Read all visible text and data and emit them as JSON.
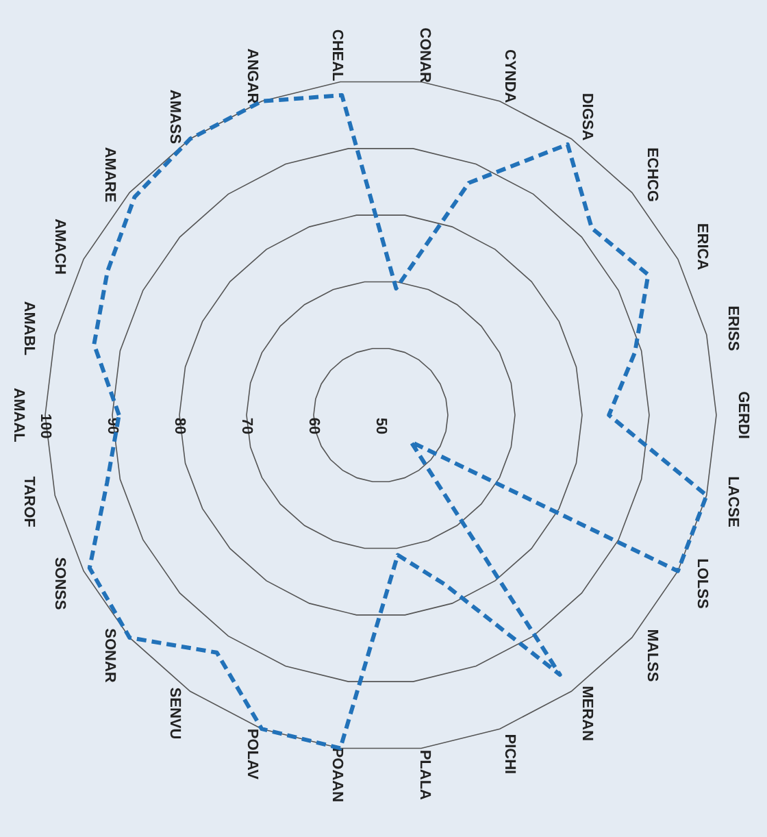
{
  "chart_data": {
    "type": "radar",
    "categories": [
      "AMAAL",
      "AMABL",
      "AMACH",
      "AMARE",
      "AMASS",
      "ANGAR",
      "CHEAL",
      "CONAR",
      "CYNDA",
      "DIGSA",
      "ECHCG",
      "ERICA",
      "ERISS",
      "GERDI",
      "LACSE",
      "LOLSS",
      "MALSS",
      "MERAN",
      "PICHI",
      "PLALA",
      "POAAN",
      "POLAV",
      "SENVU",
      "SONAR",
      "SONSS",
      "TAROF"
    ],
    "series": [
      {
        "color": "#2272b9",
        "values": [
          89,
          94,
          96,
          99,
          100,
          100,
          98,
          69,
          87,
          99,
          92,
          95,
          89,
          84,
          100,
          100,
          56,
          97,
          77,
          71,
          100,
          100,
          93,
          100,
          99,
          92
        ]
      }
    ],
    "ylim": [
      50,
      100
    ],
    "yticks": [
      50,
      60,
      70,
      80,
      90,
      100
    ],
    "grid": true,
    "line_style": "dashed",
    "marker": "none"
  }
}
